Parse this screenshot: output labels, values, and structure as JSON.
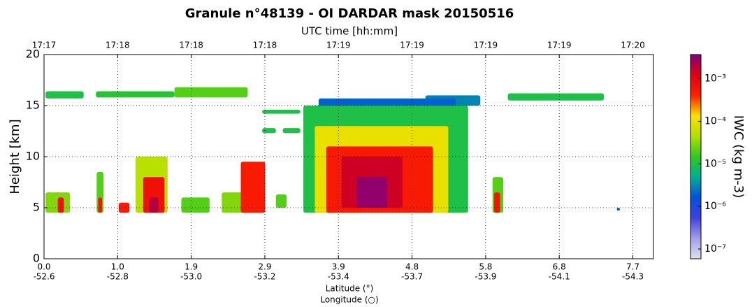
{
  "chart_data": {
    "type": "curtain",
    "title": "Granule n°48139 - OI DARDAR mask 20150516",
    "top_axis_label": "UTC time [hh:mm]",
    "utc_labels": [
      "17:17",
      "17:18",
      "17:18",
      "17:18",
      "17:19",
      "17:19",
      "17:19",
      "17:19",
      "17:20"
    ],
    "xlabel": "Latitude (°)",
    "xlabel2": "Longitude (○)",
    "longitude_labels": [
      "-52.6",
      "-52.8",
      "-53.0",
      "-53.2",
      "-53.4",
      "-53.7",
      "-53.9",
      "-54.1",
      "-54.3"
    ],
    "ylabel": "Height [km]",
    "xlim": [
      0,
      7.99
    ],
    "xticks": [
      {
        "value": 0,
        "label": "0.0"
      },
      {
        "value": 0.965,
        "label": "1.0"
      },
      {
        "value": 1.93,
        "label": "1.9"
      },
      {
        "value": 2.895,
        "label": "2.9"
      },
      {
        "value": 3.86,
        "label": "3.9"
      },
      {
        "value": 4.825,
        "label": "4.8"
      },
      {
        "value": 5.79,
        "label": "5.8"
      },
      {
        "value": 6.755,
        "label": "6.8"
      },
      {
        "value": 7.72,
        "label": "7.7"
      }
    ],
    "ylim": [
      0,
      20
    ],
    "yticks": [
      0,
      5,
      10,
      15,
      20
    ],
    "grid": true,
    "colorbar_label": "IWC (kg m-3)",
    "clim": [
      5.9e-08,
      0.0037
    ],
    "log_color_scale": true,
    "colorbar_ticks": [
      {
        "value": 1e-07,
        "label": "10⁻⁷"
      },
      {
        "value": 1e-06,
        "label": "10⁻⁶"
      },
      {
        "value": 1e-05,
        "label": "10⁻⁵"
      },
      {
        "value": 0.0001,
        "label": "10⁻⁴"
      },
      {
        "value": 0.001,
        "label": "10⁻³"
      }
    ],
    "colormap": [
      "#e0e0ee",
      "#a0a0e8",
      "#4040e0",
      "#0050e0",
      "#00b090",
      "#30c820",
      "#b0e000",
      "#ffe000",
      "#ff2000",
      "#e00010",
      "#800080"
    ],
    "patches": [
      {
        "x": [
          0.02,
          0.52
        ],
        "y": [
          15.7,
          16.4
        ],
        "value": 1e-05
      },
      {
        "x": [
          0.68,
          1.71
        ],
        "y": [
          15.8,
          16.4
        ],
        "value": 1.2e-05
      },
      {
        "x": [
          1.71,
          2.67
        ],
        "y": [
          15.8,
          16.8
        ],
        "value": 2e-05
      },
      {
        "x": [
          2.86,
          3.36
        ],
        "y": [
          14.2,
          14.6
        ],
        "value": 1e-05
      },
      {
        "x": [
          5.0,
          5.72
        ],
        "y": [
          15.0,
          16.0
        ],
        "value": 3e-06
      },
      {
        "x": [
          6.08,
          7.34
        ],
        "y": [
          15.5,
          16.2
        ],
        "value": 1e-05
      },
      {
        "x": [
          2.86,
          3.04
        ],
        "y": [
          12.3,
          12.8
        ],
        "value": 1e-05
      },
      {
        "x": [
          3.13,
          3.36
        ],
        "y": [
          12.3,
          12.8
        ],
        "value": 1e-05
      },
      {
        "x": [
          3.6,
          5.4
        ],
        "y": [
          14.5,
          15.7
        ],
        "value": 2e-06
      },
      {
        "x": [
          3.4,
          5.56
        ],
        "y": [
          4.5,
          15.0
        ],
        "value": 1e-05
      },
      {
        "x": [
          3.55,
          5.3
        ],
        "y": [
          4.5,
          13.0
        ],
        "value": 0.0001
      },
      {
        "x": [
          3.7,
          5.1
        ],
        "y": [
          4.5,
          11.0
        ],
        "value": 0.0005
      },
      {
        "x": [
          3.9,
          4.7
        ],
        "y": [
          5.0,
          10.0
        ],
        "value": 0.0015
      },
      {
        "x": [
          4.1,
          4.5
        ],
        "y": [
          5.0,
          8.0
        ],
        "value": 0.003
      },
      {
        "x": [
          0.02,
          0.34
        ],
        "y": [
          4.5,
          6.5
        ],
        "value": 3e-05
      },
      {
        "x": [
          0.18,
          0.26
        ],
        "y": [
          4.5,
          6.0
        ],
        "value": 0.0007
      },
      {
        "x": [
          0.69,
          0.78
        ],
        "y": [
          4.5,
          8.5
        ],
        "value": 2e-05
      },
      {
        "x": [
          0.71,
          0.76
        ],
        "y": [
          4.5,
          6.0
        ],
        "value": 0.0006
      },
      {
        "x": [
          0.98,
          1.12
        ],
        "y": [
          4.5,
          5.5
        ],
        "value": 0.0005
      },
      {
        "x": [
          1.2,
          1.62
        ],
        "y": [
          4.5,
          10.0
        ],
        "value": 5e-05
      },
      {
        "x": [
          1.3,
          1.58
        ],
        "y": [
          4.5,
          8.0
        ],
        "value": 0.0007
      },
      {
        "x": [
          1.38,
          1.5
        ],
        "y": [
          4.5,
          6.0
        ],
        "value": 0.002
      },
      {
        "x": [
          1.8,
          2.17
        ],
        "y": [
          4.5,
          6.0
        ],
        "value": 2e-05
      },
      {
        "x": [
          2.33,
          2.86
        ],
        "y": [
          4.5,
          6.5
        ],
        "value": 3e-05
      },
      {
        "x": [
          2.58,
          2.9
        ],
        "y": [
          4.5,
          9.5
        ],
        "value": 0.0005
      },
      {
        "x": [
          3.04,
          3.18
        ],
        "y": [
          5.0,
          6.3
        ],
        "value": 2e-05
      },
      {
        "x": [
          5.88,
          6.02
        ],
        "y": [
          4.5,
          8.0
        ],
        "value": 2e-05
      },
      {
        "x": [
          5.9,
          5.98
        ],
        "y": [
          4.5,
          6.5
        ],
        "value": 0.0006
      },
      {
        "x": [
          7.51,
          7.55
        ],
        "y": [
          4.7,
          5.0
        ],
        "value": 2e-06
      }
    ]
  }
}
